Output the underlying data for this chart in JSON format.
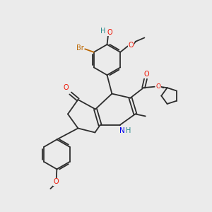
{
  "background_color": "#ebebeb",
  "bond_color": "#2d2d2d",
  "figsize": [
    3.0,
    3.0
  ],
  "dpi": 100,
  "atom_colors": {
    "O": "#ee1100",
    "N": "#0000ee",
    "Br": "#bb6600",
    "H_label": "#228888",
    "C": "#2d2d2d"
  },
  "lw": 1.3,
  "fs": 7.0
}
